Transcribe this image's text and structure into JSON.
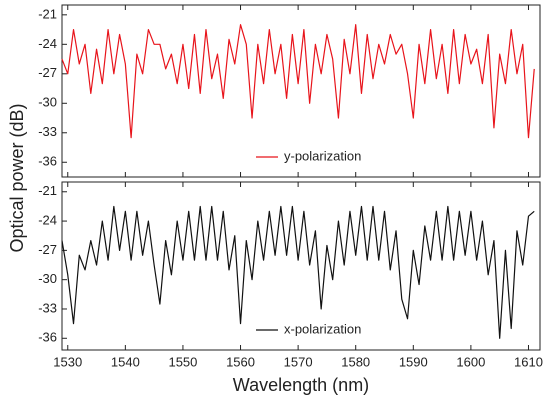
{
  "chart_data": [
    {
      "type": "line",
      "ylabel": "Optical power (dB)",
      "x": [
        1529,
        1530,
        1531,
        1532,
        1533,
        1534,
        1535,
        1536,
        1537,
        1538,
        1539,
        1540,
        1541,
        1542,
        1543,
        1544,
        1545,
        1546,
        1547,
        1548,
        1549,
        1550,
        1551,
        1552,
        1553,
        1554,
        1555,
        1556,
        1557,
        1558,
        1559,
        1560,
        1561,
        1562,
        1563,
        1564,
        1565,
        1566,
        1567,
        1568,
        1569,
        1570,
        1571,
        1572,
        1573,
        1574,
        1575,
        1576,
        1577,
        1578,
        1579,
        1580,
        1581,
        1582,
        1583,
        1584,
        1585,
        1586,
        1587,
        1588,
        1589,
        1590,
        1591,
        1592,
        1593,
        1594,
        1595,
        1596,
        1597,
        1598,
        1599,
        1600,
        1601,
        1602,
        1603,
        1604,
        1605,
        1606,
        1607,
        1608,
        1609,
        1610,
        1611
      ],
      "series": [
        {
          "name": "y-polarization",
          "color": "#e8141b",
          "values": [
            -25.5,
            -27,
            -22.5,
            -26,
            -24,
            -29,
            -24.5,
            -28,
            -22.5,
            -27,
            -23,
            -26,
            -33.5,
            -25,
            -27,
            -22.5,
            -24,
            -24,
            -26.5,
            -25,
            -28,
            -24,
            -28.5,
            -23,
            -29,
            -22.5,
            -27.5,
            -25,
            -29.5,
            -23.5,
            -26,
            -22,
            -24,
            -31.5,
            -24,
            -28,
            -22.5,
            -27,
            -24,
            -29.5,
            -23,
            -28,
            -22.5,
            -30,
            -24,
            -27,
            -23,
            -25.5,
            -31.5,
            -23.5,
            -27,
            -22,
            -29,
            -23,
            -27.5,
            -24,
            -26,
            -23,
            -25,
            -24,
            -27,
            -31.5,
            -24,
            -28,
            -22.5,
            -27.5,
            -24,
            -29,
            -22.5,
            -28,
            -23,
            -26,
            -24.5,
            -28,
            -23,
            -32.5,
            -25,
            -28,
            -22.5,
            -27,
            -24,
            -33.5,
            -26.5
          ]
        }
      ],
      "xlim": [
        1529,
        1612
      ],
      "ylim": [
        -37.5,
        -20
      ],
      "yticks": [
        -21,
        -24,
        -27,
        -30,
        -33,
        -36
      ]
    },
    {
      "type": "line",
      "xlabel": "Wavelength (nm)",
      "x": [
        1529,
        1530,
        1531,
        1532,
        1533,
        1534,
        1535,
        1536,
        1537,
        1538,
        1539,
        1540,
        1541,
        1542,
        1543,
        1544,
        1545,
        1546,
        1547,
        1548,
        1549,
        1550,
        1551,
        1552,
        1553,
        1554,
        1555,
        1556,
        1557,
        1558,
        1559,
        1560,
        1561,
        1562,
        1563,
        1564,
        1565,
        1566,
        1567,
        1568,
        1569,
        1570,
        1571,
        1572,
        1573,
        1574,
        1575,
        1576,
        1577,
        1578,
        1579,
        1580,
        1581,
        1582,
        1583,
        1584,
        1585,
        1586,
        1587,
        1588,
        1589,
        1590,
        1591,
        1592,
        1593,
        1594,
        1595,
        1596,
        1597,
        1598,
        1599,
        1600,
        1601,
        1602,
        1603,
        1604,
        1605,
        1606,
        1607,
        1608,
        1609,
        1610,
        1611
      ],
      "series": [
        {
          "name": "x-polarization",
          "color": "#111111",
          "values": [
            -26,
            -29.5,
            -34.5,
            -27.5,
            -29,
            -26,
            -28.5,
            -24,
            -28,
            -22.5,
            -27,
            -23,
            -28,
            -23,
            -27.5,
            -24,
            -28.5,
            -32.5,
            -26,
            -29.5,
            -24,
            -28,
            -23,
            -28,
            -22.5,
            -28,
            -22.5,
            -28,
            -23,
            -29,
            -25.5,
            -34.5,
            -26,
            -30,
            -24,
            -28,
            -23,
            -27.5,
            -22.5,
            -27.5,
            -22.5,
            -28,
            -23,
            -28.5,
            -25,
            -33,
            -26.5,
            -30,
            -24,
            -28.5,
            -23,
            -27.5,
            -22.5,
            -28,
            -22.5,
            -28,
            -23,
            -29,
            -25,
            -32,
            -34,
            -27,
            -30.5,
            -24.5,
            -28,
            -23,
            -28,
            -22.5,
            -28,
            -23,
            -27.5,
            -23,
            -28,
            -24,
            -29.5,
            -26,
            -36,
            -27,
            -35,
            -25,
            -28.5,
            -23.5,
            -23
          ]
        }
      ],
      "xlim": [
        1529,
        1612
      ],
      "ylim": [
        -37.2,
        -20
      ],
      "yticks": [
        -21,
        -24,
        -27,
        -30,
        -33,
        -36
      ],
      "xticks": [
        1530,
        1540,
        1550,
        1560,
        1570,
        1580,
        1590,
        1600,
        1610
      ]
    }
  ]
}
